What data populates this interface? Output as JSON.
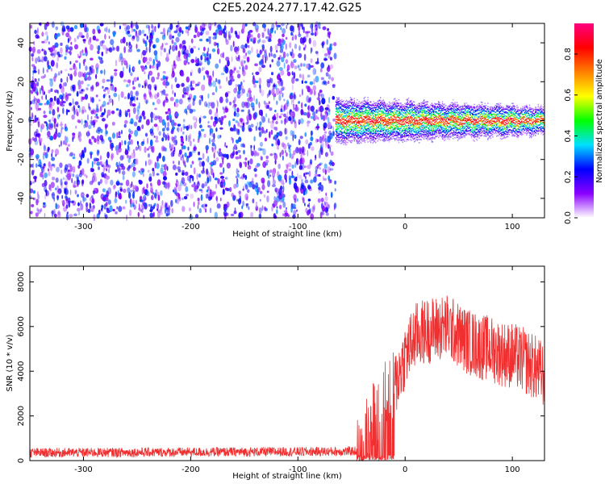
{
  "title": "C2E5.2024.277.17.42.G25",
  "chart_data": [
    {
      "type": "heatmap",
      "xlabel": "Height of straight line (km)",
      "ylabel": "Frequency (Hz)",
      "xlim": [
        -350,
        130
      ],
      "ylim": [
        -50,
        50
      ],
      "xticks": [
        -300,
        -200,
        -100,
        0,
        100
      ],
      "yticks": [
        -40,
        -20,
        0,
        20,
        40
      ],
      "noise_region_x": [
        -350,
        -65
      ],
      "signal_region_x": [
        -65,
        130
      ],
      "signal_center_frequency": 0,
      "colorbar": {
        "label": "Normalized spectral amplitude",
        "range": [
          0,
          0.95
        ],
        "ticks": [
          0,
          0.2,
          0.4,
          0.6,
          0.8
        ],
        "tick_labels": [
          "0.0",
          "0.2",
          "0.4",
          "0.6",
          "0.8"
        ],
        "colors": [
          "#ffffff",
          "#8a00ff",
          "#0000ff",
          "#00e0ff",
          "#00ff00",
          "#ffff00",
          "#ff8000",
          "#ff0000",
          "#ff0080"
        ]
      },
      "grid": false
    },
    {
      "type": "line",
      "xlabel": "Height of straight line (km)",
      "ylabel": "SNR (10 * v/v)",
      "xlim": [
        -350,
        130
      ],
      "ylim": [
        0,
        8700
      ],
      "xticks": [
        -300,
        -200,
        -100,
        0,
        100
      ],
      "yticks": [
        0,
        2000,
        4000,
        6000,
        8000
      ],
      "color": "#f03030",
      "series_profile": {
        "x": [
          -350,
          -300,
          -250,
          -200,
          -150,
          -100,
          -60,
          -45,
          -40,
          -30,
          -20,
          -10,
          0,
          10,
          20,
          30,
          40,
          50,
          60,
          70,
          80,
          90,
          100,
          110,
          120,
          130
        ],
        "y": [
          350,
          360,
          370,
          380,
          390,
          400,
          410,
          430,
          1200,
          2000,
          3000,
          3300,
          4700,
          5600,
          5800,
          5900,
          6000,
          5600,
          5300,
          5100,
          5000,
          4800,
          4700,
          4500,
          4200,
          3800
        ]
      },
      "grid": false
    }
  ]
}
